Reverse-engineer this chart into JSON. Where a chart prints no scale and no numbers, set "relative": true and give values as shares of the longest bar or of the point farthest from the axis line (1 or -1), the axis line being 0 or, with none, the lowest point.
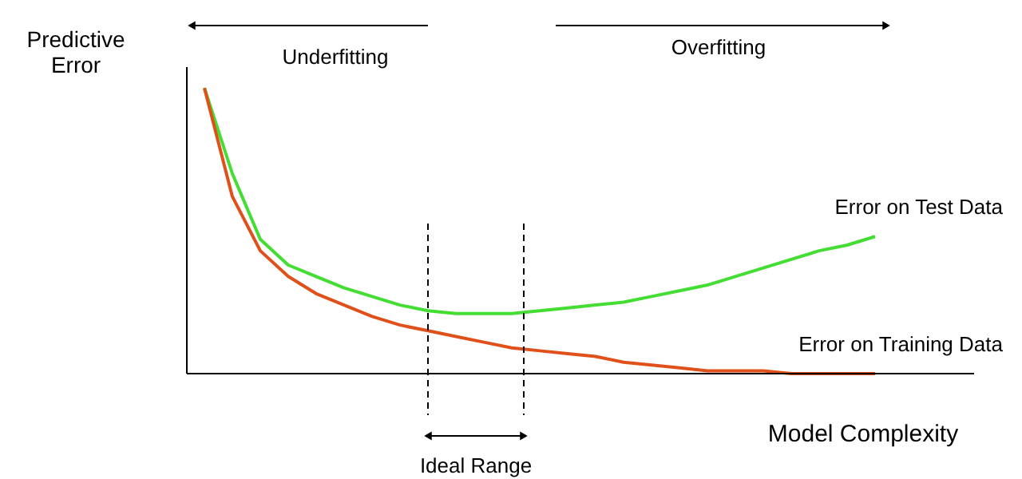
{
  "chart_data": {
    "type": "line",
    "relative": true,
    "xlabel": "Model Complexity",
    "ylabel": "Predictive Error",
    "categories": [
      null,
      null,
      null,
      null,
      null,
      null,
      null,
      null,
      null,
      null,
      null,
      null,
      null,
      null,
      null,
      null,
      null,
      null,
      null,
      null,
      null,
      null,
      null,
      null,
      null
    ],
    "tick_labels": false,
    "grid": false,
    "legend": false,
    "marker": "none",
    "line_style": "solid",
    "series": [
      {
        "name": "Error on Test Data",
        "color": "#44dd33",
        "values": [
          1.0,
          0.7,
          0.47,
          0.38,
          0.34,
          0.3,
          0.27,
          0.24,
          0.22,
          0.21,
          0.21,
          0.21,
          0.22,
          0.23,
          0.24,
          0.25,
          0.27,
          0.29,
          0.31,
          0.34,
          0.37,
          0.4,
          0.43,
          0.45,
          0.48
        ]
      },
      {
        "name": "Error on Training Data",
        "color": "#e0501a",
        "values": [
          1.0,
          0.62,
          0.43,
          0.34,
          0.28,
          0.24,
          0.2,
          0.17,
          0.15,
          0.13,
          0.11,
          0.09,
          0.08,
          0.07,
          0.06,
          0.04,
          0.03,
          0.02,
          0.01,
          0.01,
          0.01,
          0.0,
          0.0,
          0.0,
          0.0
        ]
      }
    ],
    "annotations": [
      "Underfitting",
      "Overfitting",
      "Ideal Range"
    ]
  }
}
